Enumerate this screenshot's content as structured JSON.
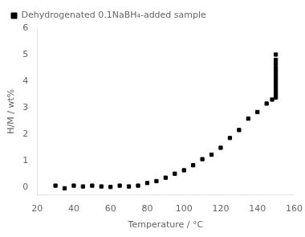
{
  "chart_data": {
    "type": "scatter",
    "x": [
      30,
      35,
      40,
      45,
      50,
      55,
      60,
      65,
      70,
      75,
      80,
      85,
      90,
      95,
      100,
      105,
      110,
      115,
      120,
      125,
      130,
      135,
      140,
      145,
      148,
      150,
      150,
      150,
      150,
      150,
      150,
      150,
      150,
      150,
      150,
      150,
      150,
      150
    ],
    "series": [
      {
        "name": "Dehydrogenated 0.1NaBH₄-added sample",
        "color": "black",
        "marker": "square",
        "values": [
          0.05,
          -0.05,
          0.05,
          0.02,
          0.05,
          0.02,
          0.0,
          0.05,
          0.02,
          0.05,
          0.15,
          0.22,
          0.35,
          0.5,
          0.63,
          0.82,
          1.05,
          1.22,
          1.48,
          1.85,
          2.15,
          2.58,
          2.83,
          3.15,
          3.3,
          3.38,
          3.5,
          3.62,
          3.75,
          3.88,
          4.0,
          4.12,
          4.25,
          4.38,
          4.5,
          4.65,
          4.8,
          5.0
        ]
      }
    ],
    "xlabel": "Temperature / °C",
    "ylabel": "H/M / wt%",
    "xlim": [
      20,
      160
    ],
    "ylim": [
      -0.3,
      6.0
    ],
    "xticks": [
      20,
      40,
      60,
      80,
      100,
      120,
      140,
      160
    ],
    "yticks": [
      0,
      1,
      2,
      3,
      4,
      5,
      6
    ],
    "legend": "upper left",
    "grid": false
  }
}
